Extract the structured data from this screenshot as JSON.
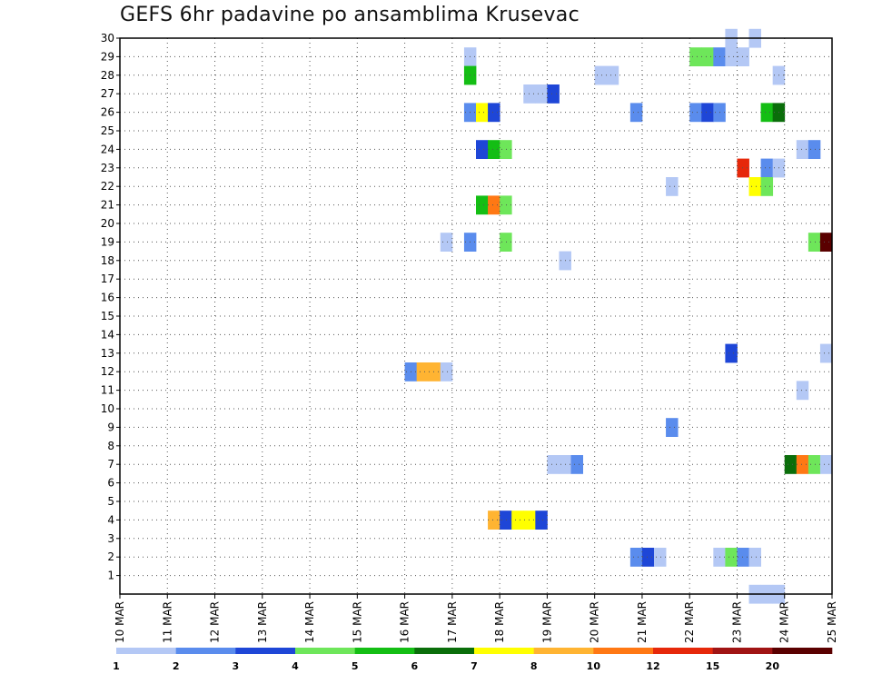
{
  "chart_data": {
    "type": "heatmap",
    "title": "GEFS 6hr padavine po ansamblima Krusevac",
    "xlabel": "",
    "ylabel": "",
    "x_ticks": [
      "10 MAR",
      "11 MAR",
      "12 MAR",
      "13 MAR",
      "14 MAR",
      "15 MAR",
      "16 MAR",
      "17 MAR",
      "18 MAR",
      "19 MAR",
      "20 MAR",
      "21 MAR",
      "22 MAR",
      "23 MAR",
      "24 MAR",
      "25 MAR"
    ],
    "x_range_days": [
      10,
      25
    ],
    "y_ticks": [
      1,
      2,
      3,
      4,
      5,
      6,
      7,
      8,
      9,
      10,
      11,
      12,
      13,
      14,
      15,
      16,
      17,
      18,
      19,
      20,
      21,
      22,
      23,
      24,
      25,
      26,
      27,
      28,
      29,
      30
    ],
    "y_range": [
      0,
      30
    ],
    "grid": true,
    "legend": {
      "position": "bottom",
      "labels": [
        "1",
        "2",
        "3",
        "4",
        "5",
        "6",
        "7",
        "8",
        "10",
        "12",
        "15",
        "20"
      ],
      "colors": [
        "#b4c8f5",
        "#5a8ced",
        "#1e46d7",
        "#6ee65a",
        "#14be14",
        "#0a6e0a",
        "#ffff00",
        "#ffb432",
        "#ff7814",
        "#e6280a",
        "#a01414",
        "#5a0000"
      ]
    },
    "cells": [
      [
        17.25,
        29,
        0
      ],
      [
        17.25,
        28,
        4
      ],
      [
        17.25,
        26,
        1
      ],
      [
        17.5,
        26,
        6
      ],
      [
        17.75,
        26,
        2
      ],
      [
        22.0,
        29,
        3
      ],
      [
        22.25,
        29,
        3
      ],
      [
        22.5,
        29,
        1
      ],
      [
        22.75,
        29,
        0
      ],
      [
        23.0,
        29,
        0
      ],
      [
        22.75,
        30,
        0
      ],
      [
        23.25,
        30,
        0
      ],
      [
        20.0,
        28,
        0
      ],
      [
        20.25,
        28,
        0
      ],
      [
        23.75,
        28,
        0
      ],
      [
        18.5,
        27,
        0
      ],
      [
        18.75,
        27,
        0
      ],
      [
        19.0,
        27,
        2
      ],
      [
        20.75,
        26,
        1
      ],
      [
        22.0,
        26,
        1
      ],
      [
        22.25,
        26,
        2
      ],
      [
        22.5,
        26,
        1
      ],
      [
        23.5,
        26,
        4
      ],
      [
        23.75,
        26,
        5
      ],
      [
        17.5,
        24,
        2
      ],
      [
        17.75,
        24,
        4
      ],
      [
        18.0,
        24,
        3
      ],
      [
        24.25,
        24,
        0
      ],
      [
        24.5,
        24,
        1
      ],
      [
        23.0,
        23,
        9
      ],
      [
        23.5,
        23,
        1
      ],
      [
        23.75,
        23,
        0
      ],
      [
        23.25,
        22,
        6
      ],
      [
        23.5,
        22,
        3
      ],
      [
        21.5,
        22,
        0
      ],
      [
        17.5,
        21,
        4
      ],
      [
        17.75,
        21,
        8
      ],
      [
        18.0,
        21,
        3
      ],
      [
        16.75,
        19,
        0
      ],
      [
        17.25,
        19,
        1
      ],
      [
        18.0,
        19,
        3
      ],
      [
        24.5,
        19,
        3
      ],
      [
        24.75,
        19,
        11
      ],
      [
        19.25,
        18,
        0
      ],
      [
        22.75,
        13,
        2
      ],
      [
        24.75,
        13,
        0
      ],
      [
        16.0,
        12,
        1
      ],
      [
        16.25,
        12,
        7
      ],
      [
        16.5,
        12,
        7
      ],
      [
        16.75,
        12,
        0
      ],
      [
        24.25,
        11,
        0
      ],
      [
        21.5,
        9,
        1
      ],
      [
        19.0,
        7,
        0
      ],
      [
        19.25,
        7,
        0
      ],
      [
        19.5,
        7,
        1
      ],
      [
        24.0,
        7,
        5
      ],
      [
        24.25,
        7,
        8
      ],
      [
        24.5,
        7,
        3
      ],
      [
        24.75,
        7,
        0
      ],
      [
        17.75,
        4,
        7
      ],
      [
        18.0,
        4,
        2
      ],
      [
        18.25,
        4,
        6
      ],
      [
        18.5,
        4,
        6
      ],
      [
        18.75,
        4,
        2
      ],
      [
        20.75,
        2,
        1
      ],
      [
        21.0,
        2,
        2
      ],
      [
        21.25,
        2,
        0
      ],
      [
        22.5,
        2,
        0
      ],
      [
        22.75,
        2,
        3
      ],
      [
        23.0,
        2,
        1
      ],
      [
        23.25,
        2,
        0
      ],
      [
        23.25,
        0,
        0
      ],
      [
        23.5,
        0,
        0
      ],
      [
        23.75,
        0,
        0
      ]
    ]
  }
}
